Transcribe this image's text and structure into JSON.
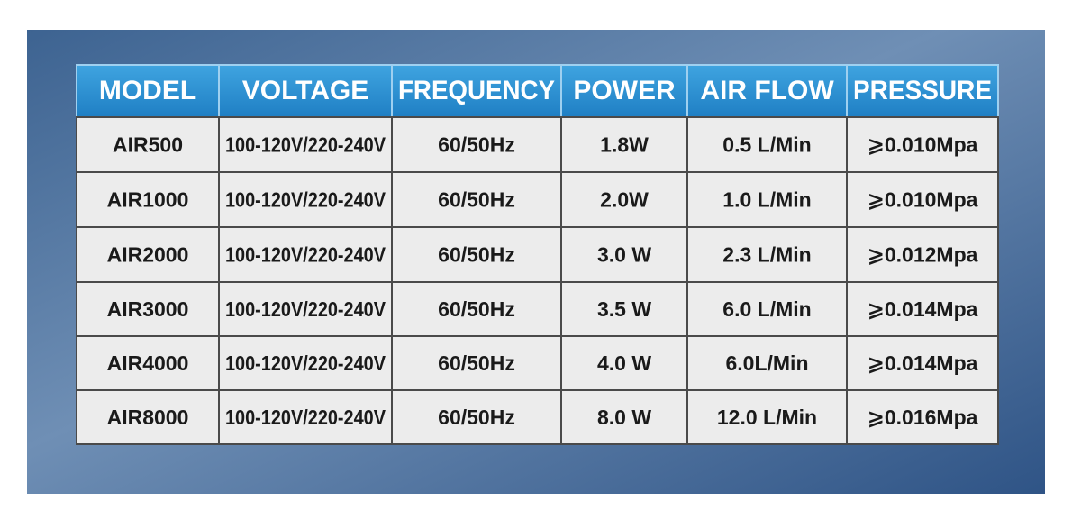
{
  "table": {
    "header": [
      "MODEL",
      "VOLTAGE",
      "FREQUENCY",
      "POWER",
      "AIR FLOW",
      "PRESSURE"
    ],
    "rows": [
      [
        "AIR500",
        "100-120V/220-240V",
        "60/50Hz",
        "1.8W",
        "0.5 L/Min",
        "⩾0.010Mpa"
      ],
      [
        "AIR1000",
        "100-120V/220-240V",
        "60/50Hz",
        "2.0W",
        "1.0 L/Min",
        "⩾0.010Mpa"
      ],
      [
        "AIR2000",
        "100-120V/220-240V",
        "60/50Hz",
        "3.0 W",
        "2.3 L/Min",
        "⩾0.012Mpa"
      ],
      [
        "AIR3000",
        "100-120V/220-240V",
        "60/50Hz",
        "3.5 W",
        "6.0 L/Min",
        "⩾0.014Mpa"
      ],
      [
        "AIR4000",
        "100-120V/220-240V",
        "60/50Hz",
        "4.0 W",
        "6.0L/Min",
        "⩾0.014Mpa"
      ],
      [
        "AIR8000",
        "100-120V/220-240V",
        "60/50Hz",
        "8.0 W",
        "12.0 L/Min",
        "⩾0.016Mpa"
      ]
    ]
  }
}
